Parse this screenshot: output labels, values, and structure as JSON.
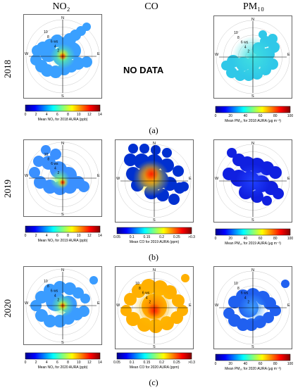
{
  "columns": [
    "NO₂",
    "CO",
    "PM₁₀"
  ],
  "rows": [
    {
      "year": "2018",
      "sub": "(a)"
    },
    {
      "year": "2019",
      "sub": "(b)"
    },
    {
      "year": "2020",
      "sub": "(c)"
    }
  ],
  "no_data_text": "NO DATA",
  "directions": {
    "n": "N",
    "e": "E",
    "s": "S",
    "w": "W"
  },
  "ring_labels": {
    "r10": "10",
    "r8": "8",
    "r6": "6 ws",
    "r4": "4",
    "r2": "2"
  },
  "colorbars": {
    "no2": {
      "ticks": [
        "0",
        "2",
        "4",
        "6",
        "8",
        "10",
        "12",
        "14"
      ]
    },
    "co": {
      "ticks": [
        "0.05",
        "0.1",
        "0.15",
        "0.2",
        "0.25",
        ">0.3"
      ]
    },
    "pm10": {
      "ticks": [
        "0",
        "20",
        "40",
        "60",
        "80",
        "100"
      ]
    }
  },
  "captions": {
    "no2_2018": "Mean NO₂ for 2018 AURA (ppb)",
    "pm10_2018": "Mean PM₁₀ for 2018 AURA (μg m⁻³)",
    "no2_2019": "Mean NO₂ for 2019 AURA (ppb)",
    "co_2019": "Mean CO for 2019 AURA (ppm)",
    "pm10_2019": "Mean PM₁₀ for 2019 AURA (μg m⁻³)",
    "no2_2020": "Mean NO₂ for 2020 AURA (ppb)",
    "co_2020": "Mean CO for 2020 AURA (ppm)",
    "pm10_2020": "Mean PM₁₀ for 2020 AURA (μg m⁻³)"
  },
  "colors": {
    "jet": [
      "#00008f",
      "#0000ff",
      "#0080ff",
      "#00ffff",
      "#80ff80",
      "#ffff00",
      "#ff8000",
      "#ff0000",
      "#800000"
    ]
  }
}
